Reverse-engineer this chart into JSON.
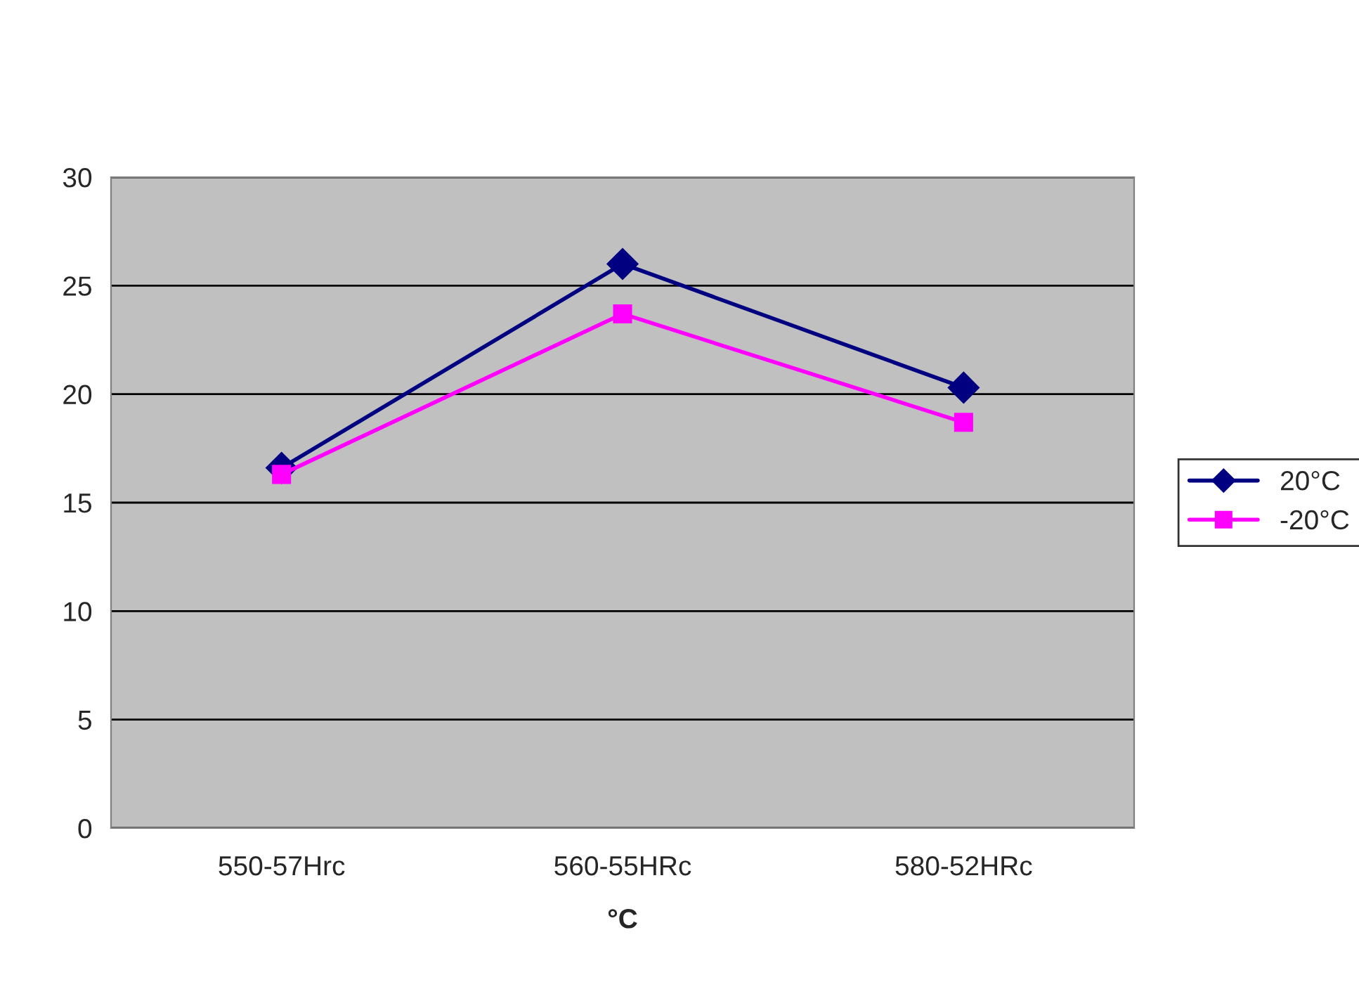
{
  "chart_data": {
    "type": "line",
    "xlabel": "°C",
    "categories": [
      "550-57Hrc",
      "560-55HRc",
      "580-52HRc"
    ],
    "series": [
      {
        "name": "20°C",
        "color": "#000080",
        "marker": "diamond",
        "values": [
          16.6,
          26.0,
          20.3
        ]
      },
      {
        "name": "-20°C",
        "color": "#ff00ff",
        "marker": "square",
        "values": [
          16.3,
          23.7,
          18.7
        ]
      }
    ],
    "ylim": [
      0,
      30
    ],
    "yticks": [
      0,
      5,
      10,
      15,
      20,
      25,
      30
    ],
    "grid": "y",
    "legend": "right",
    "line_style": "solid"
  }
}
